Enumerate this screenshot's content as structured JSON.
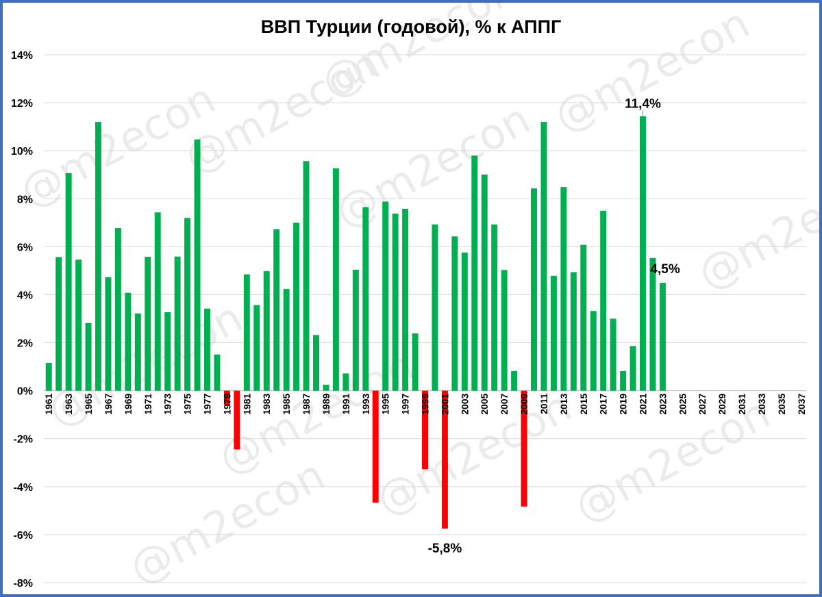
{
  "chart_data": {
    "type": "bar",
    "title": "ВВП Турции (годовой), % к АППГ",
    "xlabel": "",
    "ylabel": "",
    "ylim": [
      -8,
      14
    ],
    "y_ticks": [
      14,
      12,
      10,
      8,
      6,
      4,
      2,
      0,
      -2,
      -4,
      -6,
      -8
    ],
    "y_tick_labels": [
      "14%",
      "12%",
      "10%",
      "8%",
      "6%",
      "4%",
      "2%",
      "0%",
      "-2%",
      "-4%",
      "-6%",
      "-8%"
    ],
    "grid": true,
    "categories": [
      1961,
      1962,
      1963,
      1964,
      1965,
      1966,
      1967,
      1968,
      1969,
      1970,
      1971,
      1972,
      1973,
      1974,
      1975,
      1976,
      1977,
      1978,
      1979,
      1980,
      1981,
      1982,
      1983,
      1984,
      1985,
      1986,
      1987,
      1988,
      1989,
      1990,
      1991,
      1992,
      1993,
      1994,
      1995,
      1996,
      1997,
      1998,
      1999,
      2000,
      2001,
      2002,
      2003,
      2004,
      2005,
      2006,
      2007,
      2008,
      2009,
      2010,
      2011,
      2012,
      2013,
      2014,
      2015,
      2016,
      2017,
      2018,
      2019,
      2020,
      2021,
      2022,
      2023,
      2024,
      2025,
      2026,
      2027,
      2028,
      2029,
      2030,
      2031,
      2032,
      2033,
      2034,
      2035,
      2036,
      2037
    ],
    "x_tick_labels": [
      "1961",
      "1963",
      "1965",
      "1967",
      "1969",
      "1971",
      "1973",
      "1975",
      "1977",
      "1979",
      "1981",
      "1983",
      "1985",
      "1987",
      "1989",
      "1991",
      "1993",
      "1995",
      "1997",
      "1999",
      "2001",
      "2003",
      "2005",
      "2007",
      "2009",
      "2011",
      "2013",
      "2015",
      "2017",
      "2019",
      "2021",
      "2023",
      "2025",
      "2027",
      "2029",
      "2031",
      "2033",
      "2035",
      "2037"
    ],
    "values": [
      1.16,
      5.57,
      9.07,
      5.46,
      2.82,
      11.2,
      4.73,
      6.78,
      4.08,
      3.22,
      5.58,
      7.43,
      3.27,
      5.59,
      7.2,
      10.47,
      3.42,
      1.51,
      -0.6,
      -2.45,
      4.85,
      3.57,
      4.98,
      6.73,
      4.24,
      7.0,
      9.57,
      2.32,
      0.25,
      9.27,
      0.72,
      5.04,
      7.65,
      -4.67,
      7.88,
      7.38,
      7.58,
      2.39,
      -3.27,
      6.93,
      -5.75,
      6.43,
      5.76,
      9.8,
      9.01,
      6.93,
      5.03,
      0.82,
      -4.83,
      8.43,
      11.2,
      4.79,
      8.49,
      4.94,
      6.08,
      3.32,
      7.5,
      3.0,
      0.82,
      1.86,
      11.44,
      5.53,
      4.5,
      null,
      null,
      null,
      null,
      null,
      null,
      null,
      null,
      null,
      null,
      null,
      null,
      null,
      null
    ],
    "colors": {
      "positive": "#00b050",
      "negative": "#ff0000"
    },
    "annotations": [
      {
        "category": 2021,
        "text": "11,4%"
      },
      {
        "category": 2023,
        "text": "4,5%"
      },
      {
        "category": 2001,
        "text": "-5,8%"
      }
    ]
  },
  "watermark": "@m2econ"
}
